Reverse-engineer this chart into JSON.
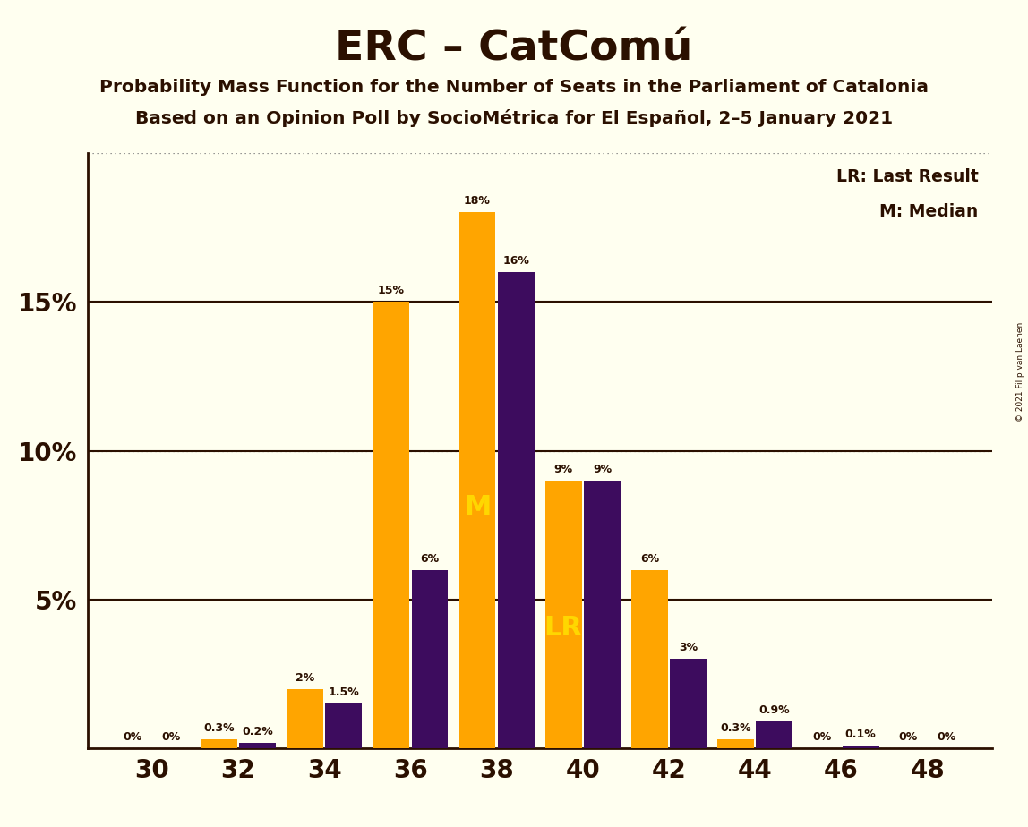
{
  "title": "ERC – CatComú",
  "subtitle1": "Probability Mass Function for the Number of Seats in the Parliament of Catalonia",
  "subtitle2": "Based on an Opinion Poll by SocioMétrica for El Español, 2–5 January 2021",
  "copyright": "© 2021 Filip van Laenen",
  "even_seats": [
    30,
    32,
    34,
    36,
    38,
    40,
    42,
    44,
    46,
    48
  ],
  "purple_values": [
    0.0,
    0.2,
    1.5,
    6.0,
    16.0,
    9.0,
    3.0,
    0.9,
    0.1,
    0.0
  ],
  "orange_values": [
    0.0,
    0.3,
    2.0,
    15.0,
    18.0,
    9.0,
    6.0,
    0.3,
    0.0,
    0.0
  ],
  "purple_labels": [
    "0%",
    "0.2%",
    "1.5%",
    "6%",
    "16%",
    "9%",
    "3%",
    "0.9%",
    "0.1%",
    "0%"
  ],
  "orange_labels": [
    "0%",
    "0.3%",
    "2%",
    "15%",
    "18%",
    "9%",
    "6%",
    "0.3%",
    "0%",
    "0%"
  ],
  "lr_index": 5,
  "median_index": 4,
  "lr_label": "LR",
  "median_label": "M",
  "legend_lr": "LR: Last Result",
  "legend_m": "M: Median",
  "purple_color": "#3D0C5E",
  "orange_color": "#FFA500",
  "background_color": "#FFFFF0",
  "text_color": "#2B1000",
  "bar_width": 0.85,
  "bar_gap": 0.05,
  "xlim": [
    28.5,
    49.5
  ],
  "ylim": [
    0,
    20
  ],
  "yticks": [
    0,
    5,
    10,
    15,
    20
  ],
  "ytick_labels": [
    "",
    "5%",
    "10%",
    "15%",
    ""
  ],
  "xtick_positions": [
    30,
    32,
    34,
    36,
    38,
    40,
    42,
    44,
    46,
    48
  ]
}
